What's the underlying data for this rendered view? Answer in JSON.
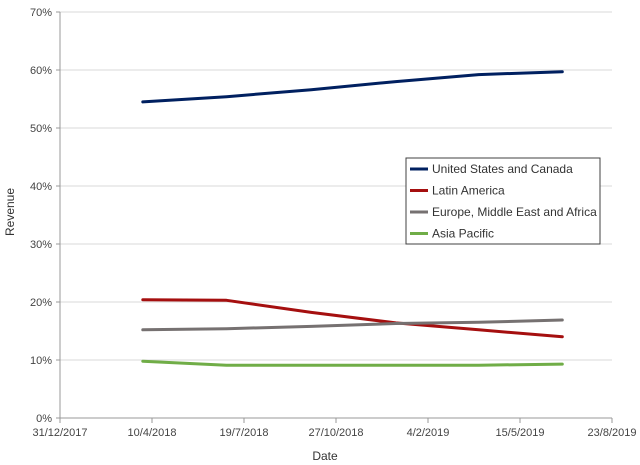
{
  "chart_data": {
    "type": "line",
    "xlabel": "Date",
    "ylabel": "Revenue",
    "x_ticks": [
      "31/12/2017",
      "10/4/2018",
      "19/7/2018",
      "27/10/2018",
      "4/2/2019",
      "15/5/2019",
      "23/8/2019"
    ],
    "x_range": [
      "2017-12-31",
      "2019-08-23"
    ],
    "y_ticks": [
      "0%",
      "10%",
      "20%",
      "30%",
      "40%",
      "50%",
      "60%",
      "70%"
    ],
    "ylim": [
      0,
      70
    ],
    "grid": "horizontal",
    "legend_position": "right-middle",
    "series": [
      {
        "name": "United States and Canada",
        "color": "#002060",
        "x": [
          "2018-03-31",
          "2018-06-30",
          "2018-09-30",
          "2018-12-31",
          "2019-03-31",
          "2019-06-30"
        ],
        "values": [
          54.5,
          55.4,
          56.6,
          58.0,
          59.2,
          59.7
        ]
      },
      {
        "name": "Latin America",
        "color": "#a50f0f",
        "x": [
          "2018-03-31",
          "2018-06-30",
          "2018-09-30",
          "2018-12-31",
          "2019-03-31",
          "2019-06-30"
        ],
        "values": [
          20.4,
          20.3,
          18.2,
          16.4,
          15.2,
          14.0
        ]
      },
      {
        "name": "Europe, Middle East and Africa",
        "color": "#767171",
        "x": [
          "2018-03-31",
          "2018-06-30",
          "2018-09-30",
          "2018-12-31",
          "2019-03-31",
          "2019-06-30"
        ],
        "values": [
          15.2,
          15.4,
          15.8,
          16.3,
          16.5,
          16.9
        ]
      },
      {
        "name": "Asia Pacific",
        "color": "#70ad47",
        "x": [
          "2018-03-31",
          "2018-06-30",
          "2018-09-30",
          "2018-12-31",
          "2019-03-31",
          "2019-06-30"
        ],
        "values": [
          9.8,
          9.1,
          9.1,
          9.1,
          9.1,
          9.3
        ]
      }
    ]
  }
}
